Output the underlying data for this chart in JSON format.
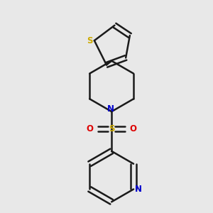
{
  "background_color": "#e8e8e8",
  "bond_color": "#1a1a1a",
  "bond_width": 1.8,
  "S_thiophene_color": "#ccaa00",
  "N_piperidine_color": "#0000cc",
  "S_sulfonyl_color": "#ccaa00",
  "O_color": "#dd0000",
  "N_pyridine_color": "#0000cc",
  "fig_width": 3.0,
  "fig_height": 3.0,
  "xlim": [
    -0.38,
    0.38
  ],
  "ylim": [
    -0.52,
    0.52
  ]
}
